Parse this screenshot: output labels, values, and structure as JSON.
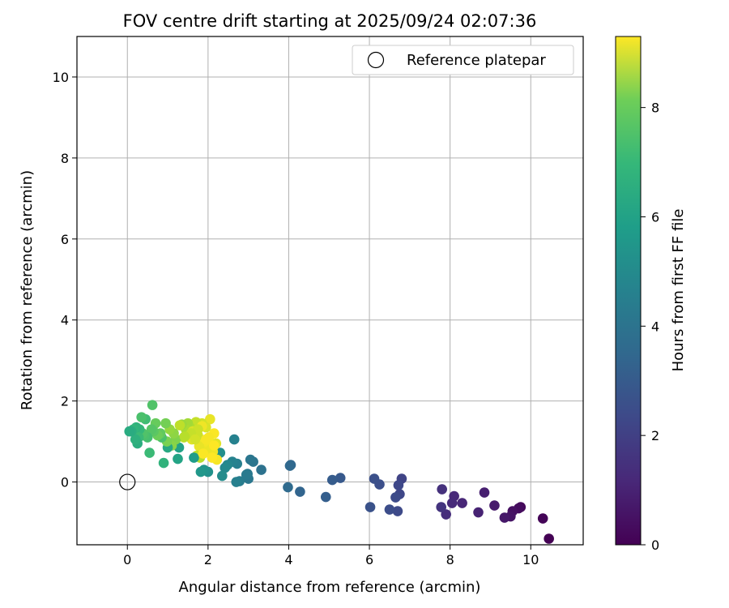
{
  "chart_data": {
    "type": "scatter",
    "title": "FOV centre drift starting at 2025/09/24 02:07:36",
    "xlabel": "Angular distance from reference (arcmin)",
    "ylabel": "Rotation from reference (arcmin)",
    "xlim": [
      -1.25,
      11.3
    ],
    "ylim": [
      -1.55,
      11.0
    ],
    "xticks": [
      0,
      2,
      4,
      6,
      8,
      10
    ],
    "yticks": [
      0,
      2,
      4,
      6,
      8,
      10
    ],
    "grid": true,
    "legend": {
      "position": "top-right",
      "entries": [
        "Reference platepar"
      ]
    },
    "reference_point": {
      "label": "Reference platepar",
      "x": 0,
      "y": 0
    },
    "colorbar": {
      "label": "Hours from first FF file",
      "colormap": "viridis",
      "range": [
        0,
        9.3
      ],
      "ticks": [
        0,
        2,
        4,
        6,
        8
      ]
    },
    "series": [
      {
        "name": "FOV centre drift",
        "x": [
          10.45,
          10.3,
          9.75,
          9.7,
          9.55,
          9.5,
          9.35,
          9.1,
          8.85,
          8.7,
          8.3,
          8.1,
          8.05,
          7.9,
          7.8,
          7.78,
          6.8,
          6.75,
          6.72,
          6.7,
          6.65,
          6.5,
          6.25,
          6.12,
          6.02,
          5.28,
          5.08,
          4.92,
          4.28,
          4.05,
          4.03,
          3.98,
          3.32,
          3.12,
          3.05,
          3.0,
          2.98,
          2.95,
          2.78,
          2.72,
          2.7,
          2.65,
          2.6,
          2.48,
          2.42,
          2.35,
          2.3,
          2.22,
          2.2,
          2.15,
          2.12,
          2.1,
          2.05,
          2.02,
          2.0,
          1.98,
          1.95,
          1.92,
          1.9,
          1.85,
          1.82,
          1.8,
          1.78,
          1.75,
          1.72,
          1.7,
          1.65,
          1.6,
          1.55,
          1.5,
          1.45,
          1.4,
          1.35,
          1.3,
          1.28,
          1.25,
          1.2,
          1.15,
          1.1,
          1.05,
          1.0,
          0.98,
          0.95,
          0.9,
          0.85,
          0.82,
          0.75,
          0.7,
          0.65,
          0.62,
          0.6,
          0.55,
          0.5,
          0.45,
          0.42,
          0.38,
          0.35,
          0.3,
          0.28,
          0.25,
          0.22,
          0.2,
          0.15,
          0.1,
          0.05,
          1.62,
          1.85,
          1.95,
          2.15,
          1.88,
          1.75,
          1.58,
          1.68,
          1.42
        ],
        "y": [
          -1.4,
          -0.9,
          -0.62,
          -0.65,
          -0.72,
          -0.85,
          -0.88,
          -0.58,
          -0.26,
          -0.75,
          -0.52,
          -0.35,
          -0.52,
          -0.8,
          -0.18,
          -0.62,
          0.08,
          -0.3,
          -0.08,
          -0.72,
          -0.38,
          -0.68,
          -0.06,
          0.08,
          -0.62,
          0.1,
          0.05,
          -0.37,
          -0.24,
          0.42,
          0.4,
          -0.13,
          0.3,
          0.5,
          0.55,
          0.08,
          0.2,
          0.18,
          0.02,
          0.45,
          0.0,
          1.05,
          0.5,
          0.42,
          0.35,
          0.15,
          0.72,
          0.55,
          0.95,
          1.2,
          0.75,
          0.6,
          1.55,
          1.1,
          0.25,
          0.85,
          1.35,
          1.0,
          0.3,
          1.45,
          0.25,
          0.6,
          0.88,
          1.15,
          0.65,
          1.48,
          0.6,
          1.05,
          1.35,
          1.45,
          1.3,
          1.1,
          1.42,
          1.4,
          0.85,
          0.57,
          1.05,
          1.2,
          0.9,
          1.3,
          0.85,
          1.0,
          1.45,
          0.47,
          1.1,
          1.2,
          1.15,
          1.45,
          1.25,
          1.9,
          1.3,
          0.72,
          1.1,
          1.55,
          1.15,
          1.2,
          1.6,
          1.3,
          1.1,
          0.95,
          1.35,
          1.05,
          1.3,
          1.25,
          1.25,
          1.25,
          1.38,
          1.05,
          0.9,
          0.7,
          1.3,
          1.2,
          1.05,
          1.12
        ],
        "hours": [
          0.0,
          0.1,
          0.2,
          0.3,
          0.4,
          0.5,
          0.6,
          0.7,
          0.8,
          0.9,
          1.0,
          1.05,
          1.1,
          1.2,
          1.3,
          1.4,
          1.9,
          2.0,
          2.05,
          2.1,
          2.15,
          2.2,
          2.25,
          2.3,
          2.35,
          2.6,
          2.7,
          2.8,
          3.0,
          3.1,
          3.15,
          3.2,
          3.5,
          3.6,
          3.65,
          3.7,
          3.75,
          3.8,
          3.9,
          4.0,
          4.05,
          4.1,
          4.15,
          4.3,
          4.4,
          4.5,
          4.6,
          9.2,
          8.9,
          9.25,
          9.1,
          9.3,
          9.0,
          9.2,
          4.7,
          9.05,
          8.8,
          9.15,
          4.8,
          8.7,
          4.9,
          8.3,
          9.0,
          8.6,
          8.4,
          8.5,
          5.1,
          8.9,
          8.2,
          8.0,
          8.1,
          8.3,
          7.9,
          8.4,
          5.3,
          5.4,
          7.5,
          7.7,
          7.6,
          7.8,
          5.6,
          7.4,
          7.3,
          6.0,
          6.6,
          7.0,
          7.2,
          7.1,
          6.9,
          6.7,
          6.8,
          6.3,
          6.5,
          6.4,
          6.6,
          6.7,
          6.6,
          6.2,
          6.3,
          5.8,
          6.0,
          5.9,
          6.1,
          5.8,
          5.7,
          8.8,
          9.1,
          9.2,
          9.3,
          9.25,
          8.6,
          8.5,
          8.7,
          8.3
        ]
      }
    ]
  }
}
